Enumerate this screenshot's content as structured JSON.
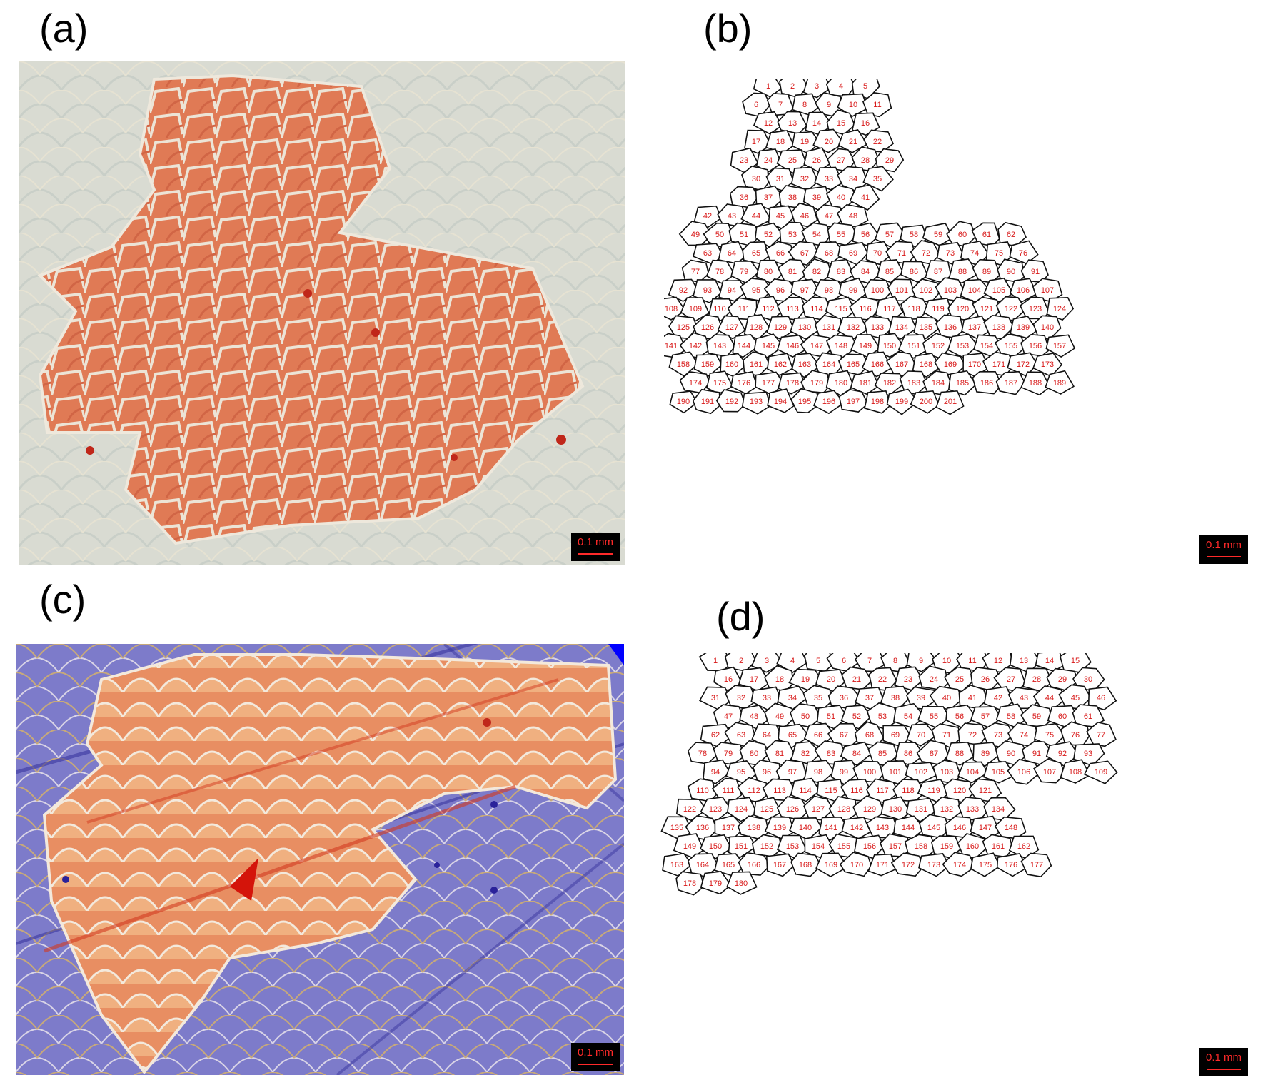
{
  "panels": {
    "a": {
      "label": "(a)",
      "scale_bar": "0.1 mm"
    },
    "b": {
      "label": "(b)",
      "scale_bar": "0.1 mm",
      "cell_count": 201
    },
    "c": {
      "label": "(c)",
      "scale_bar": "0.1 mm"
    },
    "d": {
      "label": "(d)",
      "scale_bar": "0.1 mm",
      "cell_count": 180
    }
  },
  "colors": {
    "photo_a_background": "#d7dcd6",
    "photo_c_background": "#7a78c8",
    "cells_fill": "#e07a55",
    "cell_border": "#e9e3d8",
    "outline_number": "#d81818",
    "scale_bar_text": "#ff2a2a"
  }
}
